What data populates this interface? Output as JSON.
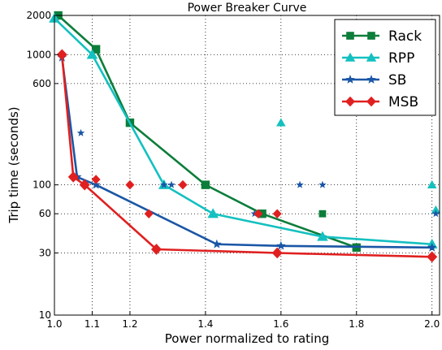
{
  "chart_data": {
    "type": "line",
    "title": "Power Breaker Curve",
    "xlabel": "Power normalized to rating",
    "ylabel": "Trip time (seconds)",
    "xlim": [
      1.0,
      2.02
    ],
    "ylim": [
      10,
      2000
    ],
    "yscale": "log",
    "grid": true,
    "legend_position": "top-right",
    "x_ticks": [
      1.0,
      1.1,
      1.2,
      1.4,
      1.6,
      1.8,
      2.0
    ],
    "x_tick_labels": [
      "1.0",
      "1.1",
      "1.2",
      "1.4",
      "1.6",
      "1.8",
      "2.0"
    ],
    "y_ticks": [
      10,
      30,
      60,
      100,
      600,
      1000,
      2000
    ],
    "y_tick_labels": [
      "10",
      "30",
      "60",
      "100",
      "600",
      "1000",
      "2000"
    ],
    "series": [
      {
        "name": "Rack",
        "color": "#0c7d3a",
        "marker": "square",
        "line": [
          [
            1.01,
            2000
          ],
          [
            1.11,
            1100
          ],
          [
            1.2,
            300
          ],
          [
            1.4,
            100
          ],
          [
            1.55,
            60
          ],
          [
            1.8,
            33
          ]
        ],
        "scatter": [
          [
            1.71,
            60
          ]
        ]
      },
      {
        "name": "RPP",
        "color": "#14c0c0",
        "marker": "triangle",
        "line": [
          [
            1.0,
            1900
          ],
          [
            1.1,
            1000
          ],
          [
            1.29,
            100
          ],
          [
            1.42,
            60
          ],
          [
            1.71,
            40
          ],
          [
            2.0,
            35
          ]
        ],
        "scatter": [
          [
            1.6,
            300
          ],
          [
            2.0,
            100
          ],
          [
            2.01,
            64
          ]
        ]
      },
      {
        "name": "SB",
        "color": "#1a56a6",
        "marker": "star",
        "line": [
          [
            1.02,
            950
          ],
          [
            1.06,
            115
          ],
          [
            1.11,
            100
          ],
          [
            1.43,
            35
          ],
          [
            1.6,
            34
          ],
          [
            2.0,
            33
          ]
        ],
        "scatter": [
          [
            1.07,
            250
          ],
          [
            1.29,
            100
          ],
          [
            1.31,
            100
          ],
          [
            1.53,
            60
          ],
          [
            1.65,
            100
          ],
          [
            1.71,
            100
          ],
          [
            2.01,
            60
          ]
        ]
      },
      {
        "name": "MSB",
        "color": "#e02020",
        "marker": "diamond",
        "line": [
          [
            1.02,
            1000
          ],
          [
            1.05,
            115
          ],
          [
            1.08,
            100
          ],
          [
            1.27,
            32
          ],
          [
            1.59,
            30
          ],
          [
            2.0,
            28
          ]
        ],
        "scatter": [
          [
            1.11,
            110
          ],
          [
            1.2,
            100
          ],
          [
            1.25,
            60
          ],
          [
            1.34,
            100
          ],
          [
            1.54,
            60
          ],
          [
            1.59,
            60
          ]
        ]
      }
    ]
  }
}
